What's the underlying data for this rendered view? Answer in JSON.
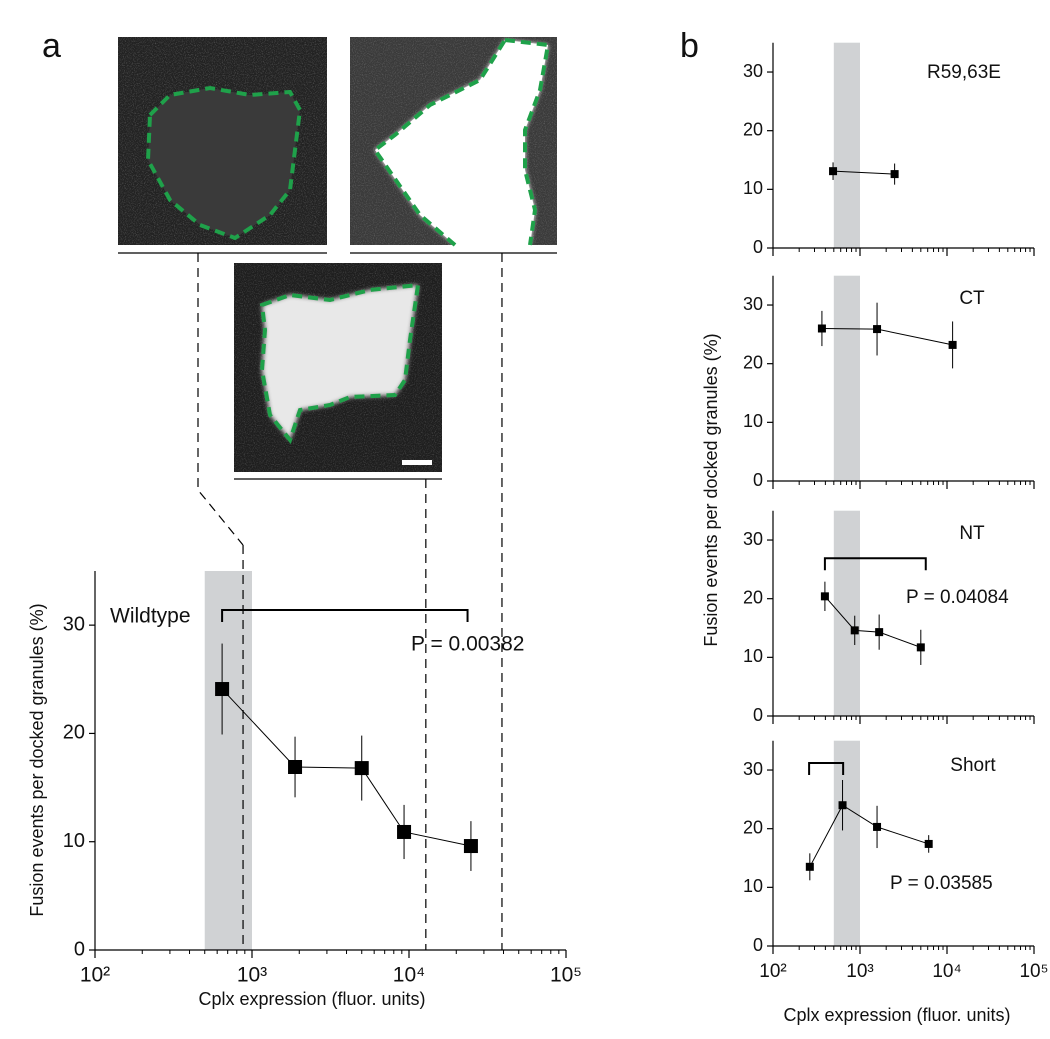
{
  "chart_data": [
    {
      "panel": "a",
      "type": "line",
      "label": "Wildtype",
      "x": [
        645,
        1880,
        5000,
        9300,
        24800
      ],
      "values": [
        24.1,
        16.9,
        16.8,
        10.9,
        9.6
      ],
      "errors": [
        4.2,
        2.8,
        3,
        2.5,
        2.3
      ],
      "color": "#000000",
      "band_color": "#d0d2d4",
      "xscale": "log",
      "xlim": [
        100,
        100000
      ],
      "xticks": [
        {
          "value": 100,
          "label": "10²"
        },
        {
          "value": 1000,
          "label": "10³"
        },
        {
          "value": 10000,
          "label": "10⁴"
        },
        {
          "value": 100000,
          "label": "10⁵"
        }
      ],
      "ylim": [
        0,
        35
      ],
      "yticks": [
        0,
        10,
        20,
        30
      ],
      "shaded_x": [
        500,
        1000
      ],
      "reference_x": [
        877,
        12800,
        39100
      ],
      "bracket_x": [
        645,
        23600
      ],
      "bracket_y": 31.4,
      "annotation": "P = 0.00382",
      "xlabel": "Cplx expression (fluor. units)",
      "ylabel": "Fusion events per docked granules (%)"
    },
    {
      "panel": "b",
      "type": "line",
      "label": "R59,63E",
      "x": [
        490,
        2500
      ],
      "values": [
        13.1,
        12.6
      ],
      "errors": [
        1.5,
        1.8
      ],
      "color": "#000000",
      "band_color": "#d0d2d4",
      "xscale": "log",
      "xlim": [
        100,
        100000
      ],
      "ylim": [
        0,
        35
      ],
      "yticks": [
        0,
        10,
        20,
        30
      ],
      "shaded_x": [
        500,
        1000
      ]
    },
    {
      "type": "line",
      "label": "CT",
      "x": [
        365,
        1570,
        11600
      ],
      "values": [
        26,
        25.9,
        23.2
      ],
      "errors": [
        3,
        4.5,
        4
      ],
      "color": "#000000",
      "band_color": "#d0d2d4",
      "xscale": "log",
      "xlim": [
        100,
        100000
      ],
      "ylim": [
        0,
        35
      ],
      "yticks": [
        0,
        10,
        20,
        30
      ],
      "shaded_x": [
        500,
        1000
      ]
    },
    {
      "type": "line",
      "label": "NT",
      "x": [
        395,
        870,
        1660,
        5000
      ],
      "values": [
        20.4,
        14.6,
        14.3,
        11.7
      ],
      "errors": [
        2.5,
        2.5,
        3,
        3
      ],
      "color": "#000000",
      "band_color": "#d0d2d4",
      "xscale": "log",
      "xlim": [
        100,
        100000
      ],
      "ylim": [
        0,
        35
      ],
      "yticks": [
        0,
        10,
        20,
        30
      ],
      "shaded_x": [
        500,
        1000
      ],
      "bracket_x": [
        395,
        5700
      ],
      "bracket_y": 26.9,
      "annotation": "P = 0.04084",
      "ylabel": "Fusion events per docked granules (%)"
    },
    {
      "type": "line",
      "label": "Short",
      "x": [
        265,
        630,
        1570,
        6160
      ],
      "values": [
        13.5,
        24,
        20.3,
        17.4
      ],
      "errors": [
        2.3,
        4.3,
        3.6,
        1.5
      ],
      "color": "#000000",
      "band_color": "#d0d2d4",
      "xscale": "log",
      "xlim": [
        100,
        100000
      ],
      "xticks": [
        {
          "value": 100,
          "label": "10²"
        },
        {
          "value": 1000,
          "label": "10³"
        },
        {
          "value": 10000,
          "label": "10⁴"
        },
        {
          "value": 100000,
          "label": "10⁵"
        }
      ],
      "ylim": [
        0,
        35
      ],
      "yticks": [
        0,
        10,
        20,
        30
      ],
      "shaded_x": [
        500,
        1000
      ],
      "bracket_x": [
        260,
        640
      ],
      "bracket_y": 31.2,
      "annotation": "P = 0.03585",
      "xlabel": "Cplx expression (fluor. units)"
    }
  ]
}
